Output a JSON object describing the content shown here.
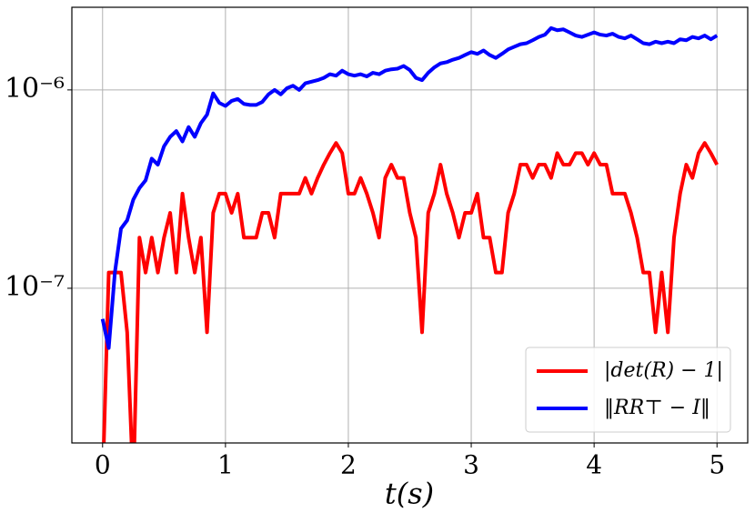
{
  "chart_data": {
    "type": "line",
    "xlabel": "t(s)",
    "yscale": "log",
    "grid": true,
    "legend": "lower right",
    "xlim": [
      -0.25,
      5.25
    ],
    "xticks": [
      0,
      1,
      2,
      3,
      4,
      5
    ],
    "ylim": [
      1.66e-08,
      2.61e-06
    ],
    "yticks": [
      {
        "value": 1e-07,
        "label": "10⁻⁷"
      },
      {
        "value": 1e-06,
        "label": "10⁻⁶"
      }
    ],
    "x": [
      0,
      0.05,
      0.1,
      0.15,
      0.2,
      0.25,
      0.3,
      0.35,
      0.4,
      0.45,
      0.5,
      0.55,
      0.6,
      0.65,
      0.7,
      0.75,
      0.8,
      0.85,
      0.9,
      0.95,
      1,
      1.05,
      1.1,
      1.15,
      1.2,
      1.25,
      1.3,
      1.35,
      1.4,
      1.45,
      1.5,
      1.55,
      1.6,
      1.65,
      1.7,
      1.75,
      1.8,
      1.85,
      1.9,
      1.95,
      2,
      2.05,
      2.1,
      2.15,
      2.2,
      2.25,
      2.3,
      2.35,
      2.4,
      2.45,
      2.5,
      2.55,
      2.6,
      2.65,
      2.7,
      2.75,
      2.8,
      2.85,
      2.9,
      2.95,
      3,
      3.05,
      3.1,
      3.15,
      3.2,
      3.25,
      3.3,
      3.35,
      3.4,
      3.45,
      3.5,
      3.55,
      3.6,
      3.65,
      3.7,
      3.75,
      3.8,
      3.85,
      3.9,
      3.95,
      4,
      4.05,
      4.1,
      4.15,
      4.2,
      4.25,
      4.3,
      4.35,
      4.4,
      4.45,
      4.5,
      4.55,
      4.6,
      4.65,
      4.7,
      4.75,
      4.8,
      4.85,
      4.9,
      4.95,
      5
    ],
    "series": [
      {
        "name": "|det(R) − 1|",
        "color": "#ff0000",
        "values": [
          1e-08,
          1.2e-07,
          1.2e-07,
          1.2e-07,
          6e-08,
          1e-08,
          1.8e-07,
          1.2e-07,
          1.8e-07,
          1.2e-07,
          1.8e-07,
          2.4e-07,
          1.2e-07,
          3e-07,
          1.8e-07,
          1.2e-07,
          1.8e-07,
          6e-08,
          2.4e-07,
          3e-07,
          3e-07,
          2.4e-07,
          3e-07,
          1.8e-07,
          1.8e-07,
          1.8e-07,
          2.4e-07,
          2.4e-07,
          1.8e-07,
          3e-07,
          3e-07,
          3e-07,
          3e-07,
          3.6e-07,
          3e-07,
          3.6e-07,
          4.2e-07,
          4.8e-07,
          5.4e-07,
          4.8e-07,
          3e-07,
          3e-07,
          3.6e-07,
          3e-07,
          2.4e-07,
          1.8e-07,
          3.6e-07,
          4.2e-07,
          3.6e-07,
          3.6e-07,
          2.4e-07,
          1.8e-07,
          6e-08,
          2.4e-07,
          3e-07,
          4.2e-07,
          3e-07,
          2.4e-07,
          1.8e-07,
          2.4e-07,
          2.4e-07,
          3e-07,
          1.8e-07,
          1.8e-07,
          1.2e-07,
          1.2e-07,
          2.4e-07,
          3e-07,
          4.2e-07,
          4.2e-07,
          3.6e-07,
          4.2e-07,
          4.2e-07,
          3.6e-07,
          4.8e-07,
          4.2e-07,
          4.2e-07,
          4.8e-07,
          4.8e-07,
          4.2e-07,
          4.8e-07,
          4.2e-07,
          4.2e-07,
          3e-07,
          3e-07,
          3e-07,
          2.4e-07,
          1.8e-07,
          1.2e-07,
          1.2e-07,
          6e-08,
          1.2e-07,
          6e-08,
          1.8e-07,
          3e-07,
          4.2e-07,
          3.6e-07,
          4.8e-07,
          5.4e-07,
          4.8e-07,
          4.2e-07
        ]
      },
      {
        "name": "‖RR⊤ − I‖",
        "color": "#0000ff",
        "values": [
          7e-08,
          5e-08,
          1.2e-07,
          2e-07,
          2.2e-07,
          2.8e-07,
          3.2e-07,
          3.5e-07,
          4.5e-07,
          4.2e-07,
          5.2e-07,
          5.8e-07,
          6.2e-07,
          5.5e-07,
          6.5e-07,
          5.8e-07,
          6.8e-07,
          7.5e-07,
          9.6e-07,
          8.6e-07,
          8.3e-07,
          8.8e-07,
          9e-07,
          8.5e-07,
          8.4e-07,
          8.4e-07,
          8.7e-07,
          9.5e-07,
          1e-06,
          9.5e-07,
          1.02e-06,
          1.05e-06,
          1e-06,
          1.08e-06,
          1.1e-06,
          1.12e-06,
          1.15e-06,
          1.2e-06,
          1.18e-06,
          1.25e-06,
          1.2e-06,
          1.18e-06,
          1.2e-06,
          1.17e-06,
          1.22e-06,
          1.2e-06,
          1.25e-06,
          1.27e-06,
          1.28e-06,
          1.32e-06,
          1.26e-06,
          1.15e-06,
          1.12e-06,
          1.22e-06,
          1.3e-06,
          1.36e-06,
          1.38e-06,
          1.42e-06,
          1.45e-06,
          1.5e-06,
          1.55e-06,
          1.52e-06,
          1.58e-06,
          1.5e-06,
          1.45e-06,
          1.52e-06,
          1.6e-06,
          1.65e-06,
          1.7e-06,
          1.72e-06,
          1.78e-06,
          1.85e-06,
          1.9e-06,
          2.05e-06,
          2e-06,
          2.02e-06,
          1.95e-06,
          1.88e-06,
          1.85e-06,
          1.9e-06,
          1.95e-06,
          1.9e-06,
          1.88e-06,
          1.92e-06,
          1.85e-06,
          1.82e-06,
          1.88e-06,
          1.8e-06,
          1.72e-06,
          1.7e-06,
          1.75e-06,
          1.72e-06,
          1.75e-06,
          1.72e-06,
          1.8e-06,
          1.78e-06,
          1.85e-06,
          1.82e-06,
          1.88e-06,
          1.8e-06,
          1.88e-06
        ]
      }
    ]
  }
}
